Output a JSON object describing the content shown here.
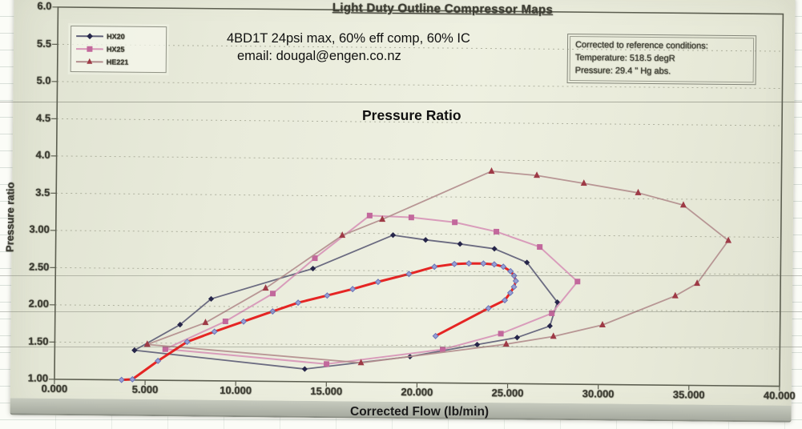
{
  "overlays": {
    "spec_line": "4BD1T 24psi max, 60% eff comp, 60% IC",
    "email_line": "email:  dougal@engen.co.nz"
  },
  "colors": {
    "photo_background": "#e9ebdb",
    "bottom_band": "#b0b4a9",
    "overlay_text": "#101010",
    "operating_line_red": "#e41414"
  },
  "chart_data": {
    "type": "line",
    "title": "Light Duty Outline Compressor Maps",
    "xlabel": "Corrected Flow (lb/min)",
    "ylabel": "Pressure ratio",
    "ylabel_overlay": "Pressure Ratio",
    "annotation": {
      "line1": "4BD1T 24psi max, 60% eff comp, 60% IC",
      "line2": "email:  dougal@engen.co.nz"
    },
    "reference_box": {
      "line1": "Corrected to reference conditions:",
      "line2": "Temperature: 518.5 degR",
      "line3": "Pressure: 29.4 \" Hg abs."
    },
    "xlim": [
      0,
      40
    ],
    "ylim": [
      1.0,
      6.0
    ],
    "x_ticks": [
      0,
      5,
      10,
      15,
      20,
      25,
      30,
      35,
      40
    ],
    "x_tick_labels": [
      "0.000",
      "5.000",
      "10.000",
      "15.000",
      "20.000",
      "25.000",
      "30.000",
      "35.000",
      "40.000"
    ],
    "y_ticks": [
      6.0,
      5.5,
      5.0,
      4.5,
      4.0,
      3.5,
      3.0,
      2.5,
      2.0,
      1.5,
      1.0
    ],
    "y_tick_labels": [
      "6.0",
      "5.5",
      "5.0",
      "4.5",
      "4.0",
      "3.5",
      "3.00",
      "2.50",
      "2.00",
      "1.50",
      "1.00"
    ],
    "grid": "horizontal-dashed",
    "legend_position": "top-left",
    "series": [
      {
        "name": "HX20",
        "in_legend": true,
        "marker": "diamond",
        "marker_size": 6.5,
        "line_color": "#5f5f78",
        "marker_color": "#26264a",
        "line_width": 1.8,
        "points": [
          [
            4.4,
            1.4
          ],
          [
            6.9,
            1.75
          ],
          [
            8.6,
            2.1
          ],
          [
            14.2,
            2.52
          ],
          [
            18.6,
            2.98
          ],
          [
            20.4,
            2.92
          ],
          [
            22.3,
            2.87
          ],
          [
            24.2,
            2.81
          ],
          [
            26.0,
            2.63
          ],
          [
            27.7,
            2.1
          ],
          [
            27.3,
            1.78
          ],
          [
            25.5,
            1.62
          ],
          [
            23.3,
            1.52
          ],
          [
            19.6,
            1.35
          ],
          [
            13.8,
            1.17
          ],
          [
            4.4,
            1.4
          ]
        ]
      },
      {
        "name": "HX25",
        "in_legend": true,
        "marker": "square",
        "marker_size": 7,
        "line_color": "#d795b7",
        "marker_color": "#c2689c",
        "line_width": 2,
        "points": [
          [
            6.1,
            1.42
          ],
          [
            9.4,
            1.8
          ],
          [
            12.0,
            2.18
          ],
          [
            14.3,
            2.66
          ],
          [
            17.3,
            3.24
          ],
          [
            19.6,
            3.22
          ],
          [
            22.0,
            3.16
          ],
          [
            24.3,
            3.04
          ],
          [
            26.7,
            2.84
          ],
          [
            28.8,
            2.38
          ],
          [
            27.4,
            1.95
          ],
          [
            24.6,
            1.67
          ],
          [
            21.4,
            1.45
          ],
          [
            15.0,
            1.24
          ],
          [
            6.1,
            1.42
          ]
        ]
      },
      {
        "name": "HE221",
        "in_legend": true,
        "marker": "triangle",
        "marker_size": 8,
        "line_color": "#b38e8e",
        "marker_color": "#9e3a46",
        "line_width": 1.8,
        "points": [
          [
            5.1,
            1.48
          ],
          [
            8.3,
            1.78
          ],
          [
            11.6,
            2.25
          ],
          [
            15.8,
            2.97
          ],
          [
            18.0,
            3.19
          ],
          [
            24.0,
            3.85
          ],
          [
            26.5,
            3.8
          ],
          [
            29.1,
            3.7
          ],
          [
            32.1,
            3.58
          ],
          [
            34.6,
            3.42
          ],
          [
            37.1,
            2.95
          ],
          [
            35.4,
            2.37
          ],
          [
            34.2,
            2.2
          ],
          [
            30.2,
            1.8
          ],
          [
            27.5,
            1.64
          ],
          [
            24.9,
            1.53
          ],
          [
            16.9,
            1.26
          ],
          [
            5.1,
            1.48
          ]
        ]
      },
      {
        "name": "operating-line",
        "in_legend": false,
        "marker": "diamond",
        "marker_size": 6,
        "line_color": "#e41414",
        "marker_color": "#98a0d4",
        "marker_stroke": "#6a74b8",
        "line_width": 3,
        "points": [
          [
            3.7,
            1.0
          ],
          [
            4.3,
            1.01
          ],
          [
            5.7,
            1.26
          ],
          [
            7.3,
            1.52
          ],
          [
            8.8,
            1.66
          ],
          [
            10.4,
            1.8
          ],
          [
            12.0,
            1.94
          ],
          [
            13.4,
            2.06
          ],
          [
            15.0,
            2.16
          ],
          [
            16.4,
            2.25
          ],
          [
            17.8,
            2.35
          ],
          [
            19.5,
            2.46
          ],
          [
            20.9,
            2.56
          ],
          [
            22.0,
            2.6
          ],
          [
            22.8,
            2.61
          ],
          [
            23.6,
            2.61
          ],
          [
            24.2,
            2.6
          ],
          [
            24.7,
            2.57
          ],
          [
            25.1,
            2.51
          ],
          [
            25.3,
            2.45
          ],
          [
            25.4,
            2.38
          ],
          [
            25.3,
            2.3
          ],
          [
            25.1,
            2.22
          ],
          [
            24.8,
            2.12
          ],
          [
            23.9,
            2.01
          ],
          [
            21.0,
            1.63
          ]
        ]
      }
    ]
  }
}
